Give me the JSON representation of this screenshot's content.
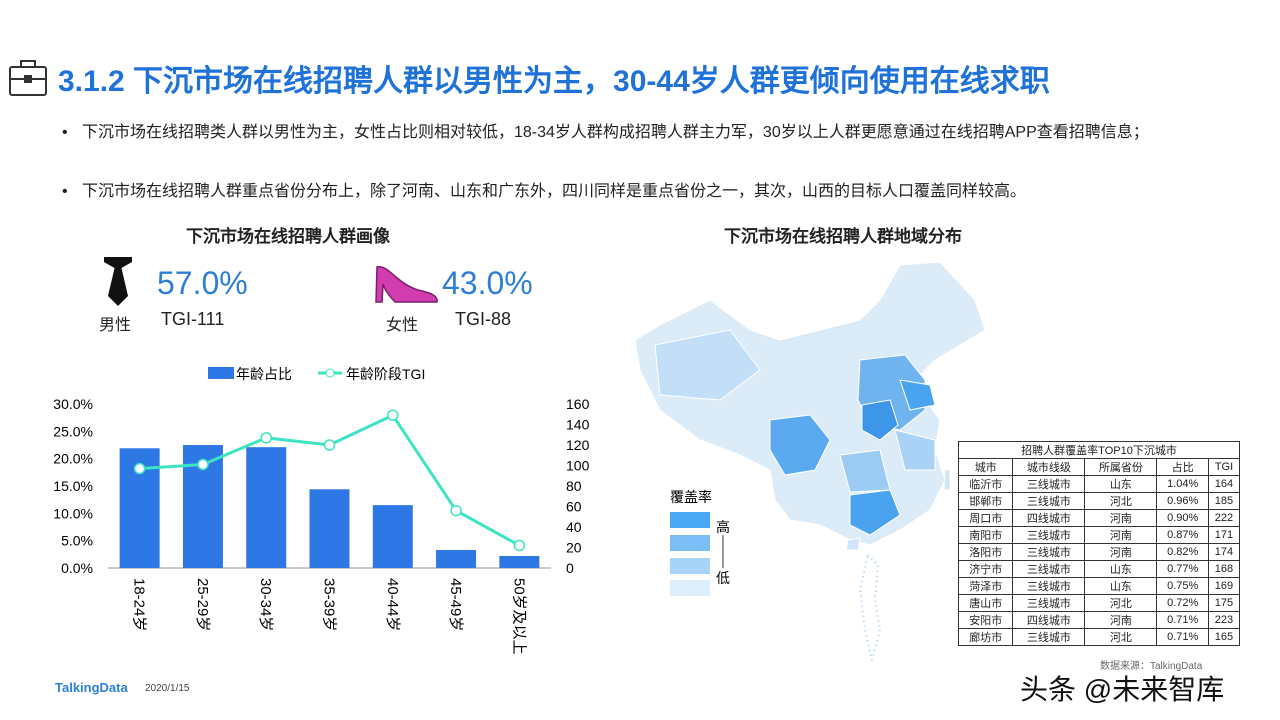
{
  "header": {
    "title": "3.1.2 下沉市场在线招聘人群以男性为主，30-44岁人群更倾向使用在线求职"
  },
  "bullets": [
    "下沉市场在线招聘类人群以男性为主，女性占比则相对较低，18-34岁人群构成招聘人群主力军，30岁以上人群更愿意通过在线招聘APP查看招聘信息；",
    "下沉市场在线招聘人群重点省份分布上，除了河南、山东和广东外，四川同样是重点省份之一，其次，山西的目标人口覆盖同样较高。"
  ],
  "portrait": {
    "title": "下沉市场在线招聘人群画像",
    "male": {
      "share": "57.0%",
      "label": "男性",
      "tgi": "TGI-111"
    },
    "female": {
      "share": "43.0%",
      "label": "女性",
      "tgi": "TGI-88"
    }
  },
  "chart_data": {
    "type": "bar",
    "categories": [
      "18-24岁",
      "25-29岁",
      "30-34岁",
      "35-39岁",
      "40-44岁",
      "45-49岁",
      "50岁及以上"
    ],
    "series": [
      {
        "name": "年龄占比",
        "color": "#2e78e6",
        "values": [
          21.9,
          22.5,
          22.1,
          14.4,
          11.5,
          3.3,
          2.2
        ]
      },
      {
        "name": "年龄阶段TGI",
        "type": "line",
        "axis": "y2",
        "color": "#3ee3c4",
        "values": [
          97,
          101,
          127,
          120,
          149,
          56,
          22
        ]
      }
    ],
    "ylim": [
      0,
      30
    ],
    "yticks": [
      {
        "value": 0,
        "label": "0.0%"
      },
      {
        "value": 5,
        "label": "5.0%"
      },
      {
        "value": 10,
        "label": "10.0%"
      },
      {
        "value": 15,
        "label": "15.0%"
      },
      {
        "value": 20,
        "label": "20.0%"
      },
      {
        "value": 25,
        "label": "25.0%"
      },
      {
        "value": 30,
        "label": "30.0%"
      }
    ],
    "y2lim": [
      0,
      160
    ],
    "y2ticks": [
      0,
      20,
      40,
      60,
      80,
      100,
      120,
      140,
      160
    ],
    "legend": "top"
  },
  "map": {
    "title": "下沉市场在线招聘人群地域分布",
    "legend": {
      "title": "覆盖率",
      "high": "高",
      "low": "低"
    }
  },
  "table": {
    "title": "招聘人群覆盖率TOP10下沉城市",
    "columns": [
      "城市",
      "城市线级",
      "所属省份",
      "占比",
      "TGI"
    ],
    "rows": [
      [
        "临沂市",
        "三线城市",
        "山东",
        "1.04%",
        164
      ],
      [
        "邯郸市",
        "三线城市",
        "河北",
        "0.96%",
        185
      ],
      [
        "周口市",
        "四线城市",
        "河南",
        "0.90%",
        222
      ],
      [
        "南阳市",
        "三线城市",
        "河南",
        "0.87%",
        171
      ],
      [
        "洛阳市",
        "三线城市",
        "河南",
        "0.82%",
        174
      ],
      [
        "济宁市",
        "三线城市",
        "山东",
        "0.77%",
        168
      ],
      [
        "菏泽市",
        "三线城市",
        "山东",
        "0.75%",
        169
      ],
      [
        "唐山市",
        "三线城市",
        "河北",
        "0.72%",
        175
      ],
      [
        "安阳市",
        "四线城市",
        "河南",
        "0.71%",
        223
      ],
      [
        "廊坊市",
        "三线城市",
        "河北",
        "0.71%",
        165
      ]
    ]
  },
  "footer": {
    "source": "数据来源：TalkingData",
    "brand": "TalkingData",
    "date": "2020/1/15",
    "watermark": "头条 @未来智库"
  }
}
